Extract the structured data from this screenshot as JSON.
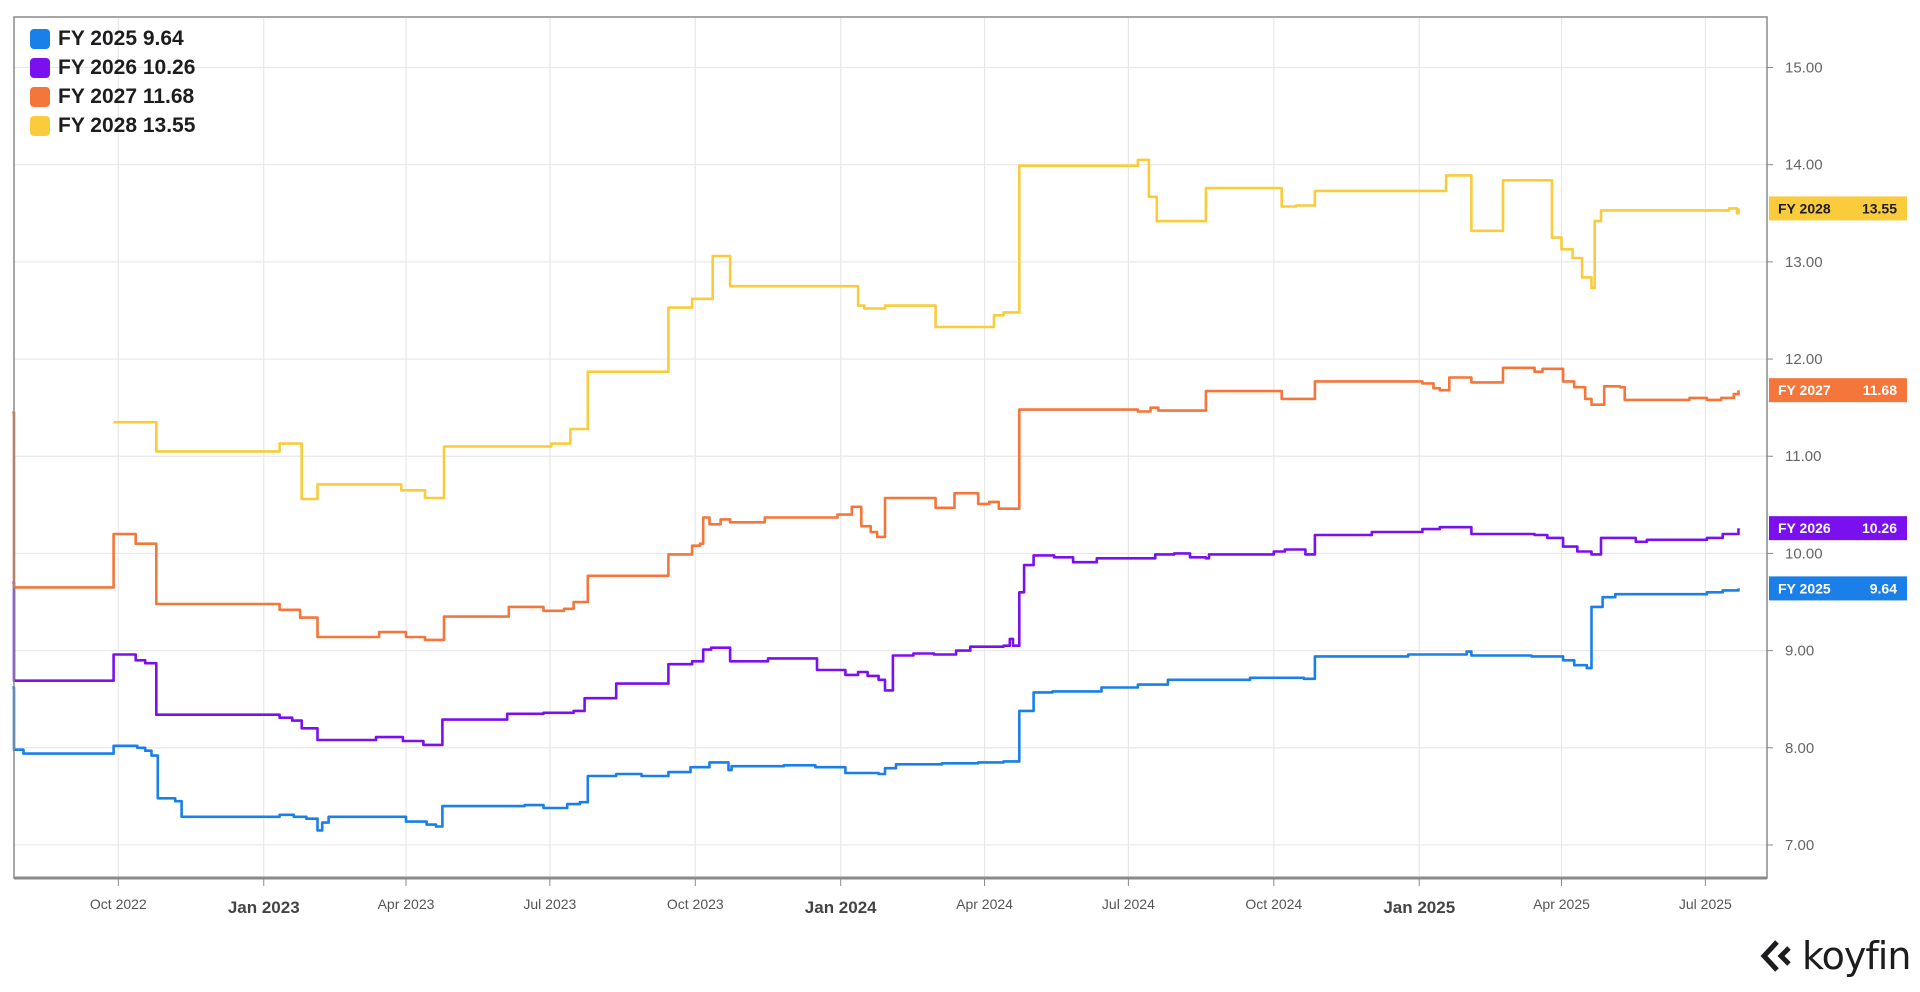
{
  "chart_data": {
    "type": "line",
    "title": "",
    "xlabel": "",
    "ylabel": "",
    "ylim": [
      6.66,
      15.52
    ],
    "xlim": [
      "2022-07-27",
      "2025-08-09"
    ],
    "grid": true,
    "legend_position": "top-left",
    "y_ticks": [
      "7.00",
      "8.00",
      "9.00",
      "10.00",
      "11.00",
      "12.00",
      "13.00",
      "14.00",
      "15.00"
    ],
    "x_ticks": [
      {
        "date": "2022-10-01",
        "label": "Oct 2022",
        "major": false
      },
      {
        "date": "2023-01-01",
        "label": "Jan 2023",
        "major": true
      },
      {
        "date": "2023-04-01",
        "label": "Apr 2023",
        "major": false
      },
      {
        "date": "2023-07-01",
        "label": "Jul 2023",
        "major": false
      },
      {
        "date": "2023-10-01",
        "label": "Oct 2023",
        "major": false
      },
      {
        "date": "2024-01-01",
        "label": "Jan 2024",
        "major": true
      },
      {
        "date": "2024-04-01",
        "label": "Apr 2024",
        "major": false
      },
      {
        "date": "2024-07-01",
        "label": "Jul 2024",
        "major": false
      },
      {
        "date": "2024-10-01",
        "label": "Oct 2024",
        "major": false
      },
      {
        "date": "2025-01-01",
        "label": "Jan 2025",
        "major": true
      },
      {
        "date": "2025-04-01",
        "label": "Apr 2025",
        "major": false
      },
      {
        "date": "2025-07-01",
        "label": "Jul 2025",
        "major": false
      }
    ],
    "series": [
      {
        "name": "FY 2025",
        "last": "9.64",
        "legend": "FY 2025 9.64",
        "color": "#1A7FE8",
        "tag_text": "#ffffff",
        "points": [
          [
            "2022-07-26",
            8.62
          ],
          [
            "2022-07-27",
            7.98
          ],
          [
            "2022-08-02",
            7.94
          ],
          [
            "2022-09-28",
            8.02
          ],
          [
            "2022-10-13",
            8.0
          ],
          [
            "2022-10-18",
            7.97
          ],
          [
            "2022-10-22",
            7.92
          ],
          [
            "2022-10-26",
            7.48
          ],
          [
            "2022-11-06",
            7.45
          ],
          [
            "2022-11-10",
            7.29
          ],
          [
            "2023-01-11",
            7.31
          ],
          [
            "2023-01-20",
            7.29
          ],
          [
            "2023-01-28",
            7.27
          ],
          [
            "2023-02-04",
            7.15
          ],
          [
            "2023-02-07",
            7.23
          ],
          [
            "2023-02-11",
            7.29
          ],
          [
            "2023-03-15",
            7.29
          ],
          [
            "2023-04-01",
            7.24
          ],
          [
            "2023-04-14",
            7.21
          ],
          [
            "2023-04-20",
            7.19
          ],
          [
            "2023-04-24",
            7.4
          ],
          [
            "2023-06-15",
            7.41
          ],
          [
            "2023-06-27",
            7.38
          ],
          [
            "2023-07-12",
            7.42
          ],
          [
            "2023-07-20",
            7.44
          ],
          [
            "2023-07-25",
            7.71
          ],
          [
            "2023-08-12",
            7.73
          ],
          [
            "2023-08-28",
            7.71
          ],
          [
            "2023-09-14",
            7.75
          ],
          [
            "2023-09-28",
            7.8
          ],
          [
            "2023-10-10",
            7.85
          ],
          [
            "2023-10-22",
            7.77
          ],
          [
            "2023-10-24",
            7.81
          ],
          [
            "2023-11-26",
            7.82
          ],
          [
            "2023-12-16",
            7.8
          ],
          [
            "2024-01-04",
            7.74
          ],
          [
            "2024-01-25",
            7.73
          ],
          [
            "2024-01-29",
            7.79
          ],
          [
            "2024-02-05",
            7.83
          ],
          [
            "2024-03-05",
            7.84
          ],
          [
            "2024-03-28",
            7.85
          ],
          [
            "2024-04-13",
            7.86
          ],
          [
            "2024-04-23",
            8.38
          ],
          [
            "2024-05-02",
            8.57
          ],
          [
            "2024-05-14",
            8.58
          ],
          [
            "2024-06-14",
            8.62
          ],
          [
            "2024-07-07",
            8.65
          ],
          [
            "2024-07-26",
            8.7
          ],
          [
            "2024-08-19",
            8.7
          ],
          [
            "2024-09-16",
            8.72
          ],
          [
            "2024-10-20",
            8.71
          ],
          [
            "2024-10-27",
            8.94
          ],
          [
            "2024-12-25",
            8.96
          ],
          [
            "2025-01-31",
            8.99
          ],
          [
            "2025-02-03",
            8.95
          ],
          [
            "2025-03-13",
            8.94
          ],
          [
            "2025-04-02",
            8.9
          ],
          [
            "2025-04-09",
            8.85
          ],
          [
            "2025-04-17",
            8.82
          ],
          [
            "2025-04-20",
            9.45
          ],
          [
            "2025-04-27",
            9.55
          ],
          [
            "2025-05-05",
            9.58
          ],
          [
            "2025-06-01",
            9.58
          ],
          [
            "2025-07-02",
            9.6
          ],
          [
            "2025-07-12",
            9.62
          ],
          [
            "2025-07-22",
            9.64
          ]
        ]
      },
      {
        "name": "FY 2026",
        "last": "10.26",
        "legend": "FY 2026 10.26",
        "color": "#7A10EE",
        "tag_text": "#ffffff",
        "points": [
          [
            "2022-07-26",
            9.7
          ],
          [
            "2022-07-27",
            8.69
          ],
          [
            "2022-09-28",
            8.96
          ],
          [
            "2022-10-12",
            8.9
          ],
          [
            "2022-10-18",
            8.87
          ],
          [
            "2022-10-25",
            8.34
          ],
          [
            "2023-01-11",
            8.31
          ],
          [
            "2023-01-19",
            8.28
          ],
          [
            "2023-01-25",
            8.2
          ],
          [
            "2023-02-04",
            8.08
          ],
          [
            "2023-03-13",
            8.11
          ],
          [
            "2023-03-30",
            8.07
          ],
          [
            "2023-04-12",
            8.03
          ],
          [
            "2023-04-24",
            8.29
          ],
          [
            "2023-06-04",
            8.35
          ],
          [
            "2023-06-27",
            8.36
          ],
          [
            "2023-07-16",
            8.38
          ],
          [
            "2023-07-23",
            8.51
          ],
          [
            "2023-08-12",
            8.66
          ],
          [
            "2023-09-14",
            8.86
          ],
          [
            "2023-09-29",
            8.89
          ],
          [
            "2023-10-06",
            9.01
          ],
          [
            "2023-10-11",
            9.03
          ],
          [
            "2023-10-23",
            8.89
          ],
          [
            "2023-11-16",
            8.92
          ],
          [
            "2023-12-17",
            8.8
          ],
          [
            "2024-01-04",
            8.75
          ],
          [
            "2024-01-12",
            8.78
          ],
          [
            "2024-01-18",
            8.74
          ],
          [
            "2024-01-25",
            8.7
          ],
          [
            "2024-01-29",
            8.59
          ],
          [
            "2024-02-03",
            8.95
          ],
          [
            "2024-02-16",
            8.97
          ],
          [
            "2024-02-29",
            8.96
          ],
          [
            "2024-03-14",
            9.0
          ],
          [
            "2024-03-23",
            9.04
          ],
          [
            "2024-04-13",
            9.05
          ],
          [
            "2024-04-17",
            9.12
          ],
          [
            "2024-04-19",
            9.05
          ],
          [
            "2024-04-23",
            9.6
          ],
          [
            "2024-04-26",
            9.88
          ],
          [
            "2024-05-02",
            9.98
          ],
          [
            "2024-05-15",
            9.96
          ],
          [
            "2024-05-27",
            9.91
          ],
          [
            "2024-06-11",
            9.95
          ],
          [
            "2024-07-18",
            9.99
          ],
          [
            "2024-07-30",
            10.0
          ],
          [
            "2024-08-09",
            9.96
          ],
          [
            "2024-08-19",
            9.95
          ],
          [
            "2024-08-21",
            9.99
          ],
          [
            "2024-10-01",
            10.02
          ],
          [
            "2024-10-08",
            10.04
          ],
          [
            "2024-10-21",
            9.99
          ],
          [
            "2024-10-27",
            10.19
          ],
          [
            "2024-12-02",
            10.22
          ],
          [
            "2025-01-03",
            10.25
          ],
          [
            "2025-01-14",
            10.27
          ],
          [
            "2025-02-03",
            10.2
          ],
          [
            "2025-03-15",
            10.19
          ],
          [
            "2025-03-23",
            10.16
          ],
          [
            "2025-04-02",
            10.07
          ],
          [
            "2025-04-11",
            10.02
          ],
          [
            "2025-04-20",
            9.99
          ],
          [
            "2025-04-26",
            10.16
          ],
          [
            "2025-05-18",
            10.12
          ],
          [
            "2025-05-25",
            10.14
          ],
          [
            "2025-07-02",
            10.16
          ],
          [
            "2025-07-12",
            10.2
          ],
          [
            "2025-07-22",
            10.26
          ]
        ]
      },
      {
        "name": "FY 2027",
        "last": "11.68",
        "legend": "FY 2027 11.68",
        "color": "#F4763B",
        "tag_text": "#ffffff",
        "points": [
          [
            "2022-07-26",
            11.45
          ],
          [
            "2022-07-27",
            9.65
          ],
          [
            "2022-09-28",
            10.2
          ],
          [
            "2022-10-12",
            10.1
          ],
          [
            "2022-10-25",
            9.48
          ],
          [
            "2023-01-11",
            9.42
          ],
          [
            "2023-01-24",
            9.34
          ],
          [
            "2023-02-04",
            9.14
          ],
          [
            "2023-03-15",
            9.19
          ],
          [
            "2023-04-01",
            9.14
          ],
          [
            "2023-04-13",
            9.11
          ],
          [
            "2023-04-25",
            9.35
          ],
          [
            "2023-06-05",
            9.45
          ],
          [
            "2023-06-27",
            9.41
          ],
          [
            "2023-07-10",
            9.43
          ],
          [
            "2023-07-16",
            9.5
          ],
          [
            "2023-07-25",
            9.77
          ],
          [
            "2023-09-14",
            9.99
          ],
          [
            "2023-09-29",
            10.08
          ],
          [
            "2023-10-04",
            10.1
          ],
          [
            "2023-10-06",
            10.37
          ],
          [
            "2023-10-10",
            10.3
          ],
          [
            "2023-10-17",
            10.35
          ],
          [
            "2023-10-23",
            10.32
          ],
          [
            "2023-11-14",
            10.37
          ],
          [
            "2023-12-30",
            10.4
          ],
          [
            "2024-01-08",
            10.48
          ],
          [
            "2024-01-14",
            10.28
          ],
          [
            "2024-01-20",
            10.22
          ],
          [
            "2024-01-24",
            10.17
          ],
          [
            "2024-01-29",
            10.57
          ],
          [
            "2024-03-01",
            10.47
          ],
          [
            "2024-03-13",
            10.62
          ],
          [
            "2024-03-28",
            10.51
          ],
          [
            "2024-04-04",
            10.53
          ],
          [
            "2024-04-10",
            10.46
          ],
          [
            "2024-04-23",
            11.48
          ],
          [
            "2024-07-07",
            11.46
          ],
          [
            "2024-07-15",
            11.5
          ],
          [
            "2024-07-20",
            11.47
          ],
          [
            "2024-08-19",
            11.67
          ],
          [
            "2024-10-06",
            11.59
          ],
          [
            "2024-10-27",
            11.77
          ],
          [
            "2025-01-03",
            11.75
          ],
          [
            "2025-01-10",
            11.7
          ],
          [
            "2025-01-14",
            11.68
          ],
          [
            "2025-01-20",
            11.81
          ],
          [
            "2025-02-03",
            11.76
          ],
          [
            "2025-02-23",
            11.91
          ],
          [
            "2025-03-15",
            11.87
          ],
          [
            "2025-03-20",
            11.9
          ],
          [
            "2025-04-02",
            11.77
          ],
          [
            "2025-04-09",
            11.71
          ],
          [
            "2025-04-16",
            11.59
          ],
          [
            "2025-04-20",
            11.53
          ],
          [
            "2025-04-28",
            11.72
          ],
          [
            "2025-05-08",
            11.71
          ],
          [
            "2025-05-11",
            11.58
          ],
          [
            "2025-06-21",
            11.6
          ],
          [
            "2025-07-02",
            11.58
          ],
          [
            "2025-07-11",
            11.6
          ],
          [
            "2025-07-19",
            11.64
          ],
          [
            "2025-07-22",
            11.68
          ]
        ]
      },
      {
        "name": "FY 2028",
        "last": "13.55",
        "legend": "FY 2028 13.55",
        "color": "#FACB3A",
        "tag_text": "#1d1d1f",
        "points": [
          [
            "2022-09-28",
            11.35
          ],
          [
            "2022-10-25",
            11.05
          ],
          [
            "2023-01-11",
            11.13
          ],
          [
            "2023-01-25",
            10.56
          ],
          [
            "2023-02-04",
            10.71
          ],
          [
            "2023-03-29",
            10.65
          ],
          [
            "2023-04-13",
            10.57
          ],
          [
            "2023-04-25",
            11.1
          ],
          [
            "2023-07-02",
            11.13
          ],
          [
            "2023-07-14",
            11.28
          ],
          [
            "2023-07-25",
            11.87
          ],
          [
            "2023-09-14",
            12.53
          ],
          [
            "2023-09-29",
            12.62
          ],
          [
            "2023-10-12",
            13.06
          ],
          [
            "2023-10-23",
            12.75
          ],
          [
            "2024-01-12",
            12.55
          ],
          [
            "2024-01-16",
            12.52
          ],
          [
            "2024-01-29",
            12.55
          ],
          [
            "2024-03-01",
            12.33
          ],
          [
            "2024-04-07",
            12.45
          ],
          [
            "2024-04-13",
            12.48
          ],
          [
            "2024-04-23",
            13.99
          ],
          [
            "2024-07-07",
            14.05
          ],
          [
            "2024-07-14",
            13.67
          ],
          [
            "2024-07-19",
            13.42
          ],
          [
            "2024-08-19",
            13.76
          ],
          [
            "2024-10-06",
            13.57
          ],
          [
            "2024-10-15",
            13.58
          ],
          [
            "2024-10-27",
            13.73
          ],
          [
            "2025-01-18",
            13.89
          ],
          [
            "2025-02-03",
            13.32
          ],
          [
            "2025-02-23",
            13.84
          ],
          [
            "2025-03-26",
            13.25
          ],
          [
            "2025-04-01",
            13.13
          ],
          [
            "2025-04-08",
            13.04
          ],
          [
            "2025-04-14",
            12.84
          ],
          [
            "2025-04-20",
            12.73
          ],
          [
            "2025-04-22",
            13.42
          ],
          [
            "2025-04-26",
            13.53
          ],
          [
            "2025-07-16",
            13.55
          ],
          [
            "2025-07-21",
            13.5
          ],
          [
            "2025-07-22",
            13.55
          ]
        ]
      }
    ]
  },
  "branding": {
    "logo_text": "koyfin"
  }
}
